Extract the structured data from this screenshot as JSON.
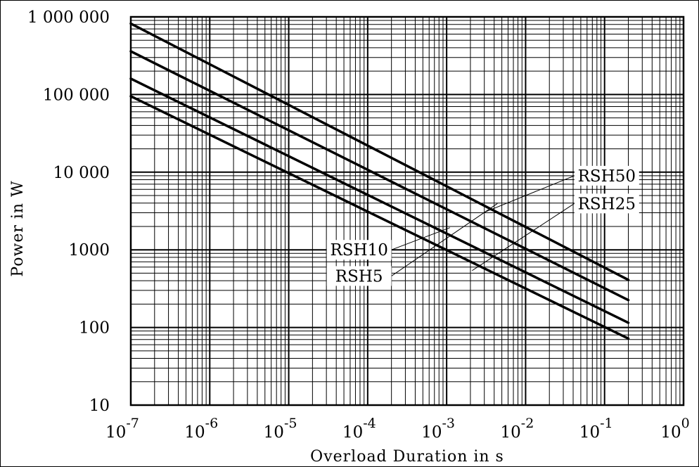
{
  "chart_data": {
    "type": "line",
    "title": "",
    "xlabel": "Overload Duration in s",
    "ylabel": "Power in W",
    "x_scale": "log",
    "y_scale": "log",
    "xlim": [
      1e-07,
      1
    ],
    "ylim": [
      10,
      1000000
    ],
    "grid": true,
    "x_ticks": [
      {
        "base": "10",
        "exp": "-7"
      },
      {
        "base": "10",
        "exp": "-6"
      },
      {
        "base": "10",
        "exp": "-5"
      },
      {
        "base": "10",
        "exp": "-4"
      },
      {
        "base": "10",
        "exp": "-3"
      },
      {
        "base": "10",
        "exp": "-2"
      },
      {
        "base": "10",
        "exp": "-1"
      },
      {
        "base": "10",
        "exp": "0"
      }
    ],
    "y_ticks": [
      "10",
      "100",
      "1000",
      "10 000",
      "100 000",
      "1 000 000"
    ],
    "series": [
      {
        "name": "RSH50",
        "x": [
          1e-07,
          0.2
        ],
        "y": [
          820000,
          410
        ]
      },
      {
        "name": "RSH25",
        "x": [
          1e-07,
          0.2
        ],
        "y": [
          360000,
          225
        ]
      },
      {
        "name": "RSH10",
        "x": [
          1e-07,
          0.2
        ],
        "y": [
          160000,
          115
        ]
      },
      {
        "name": "RSH5",
        "x": [
          1e-07,
          0.2
        ],
        "y": [
          95000,
          72
        ]
      }
    ]
  }
}
